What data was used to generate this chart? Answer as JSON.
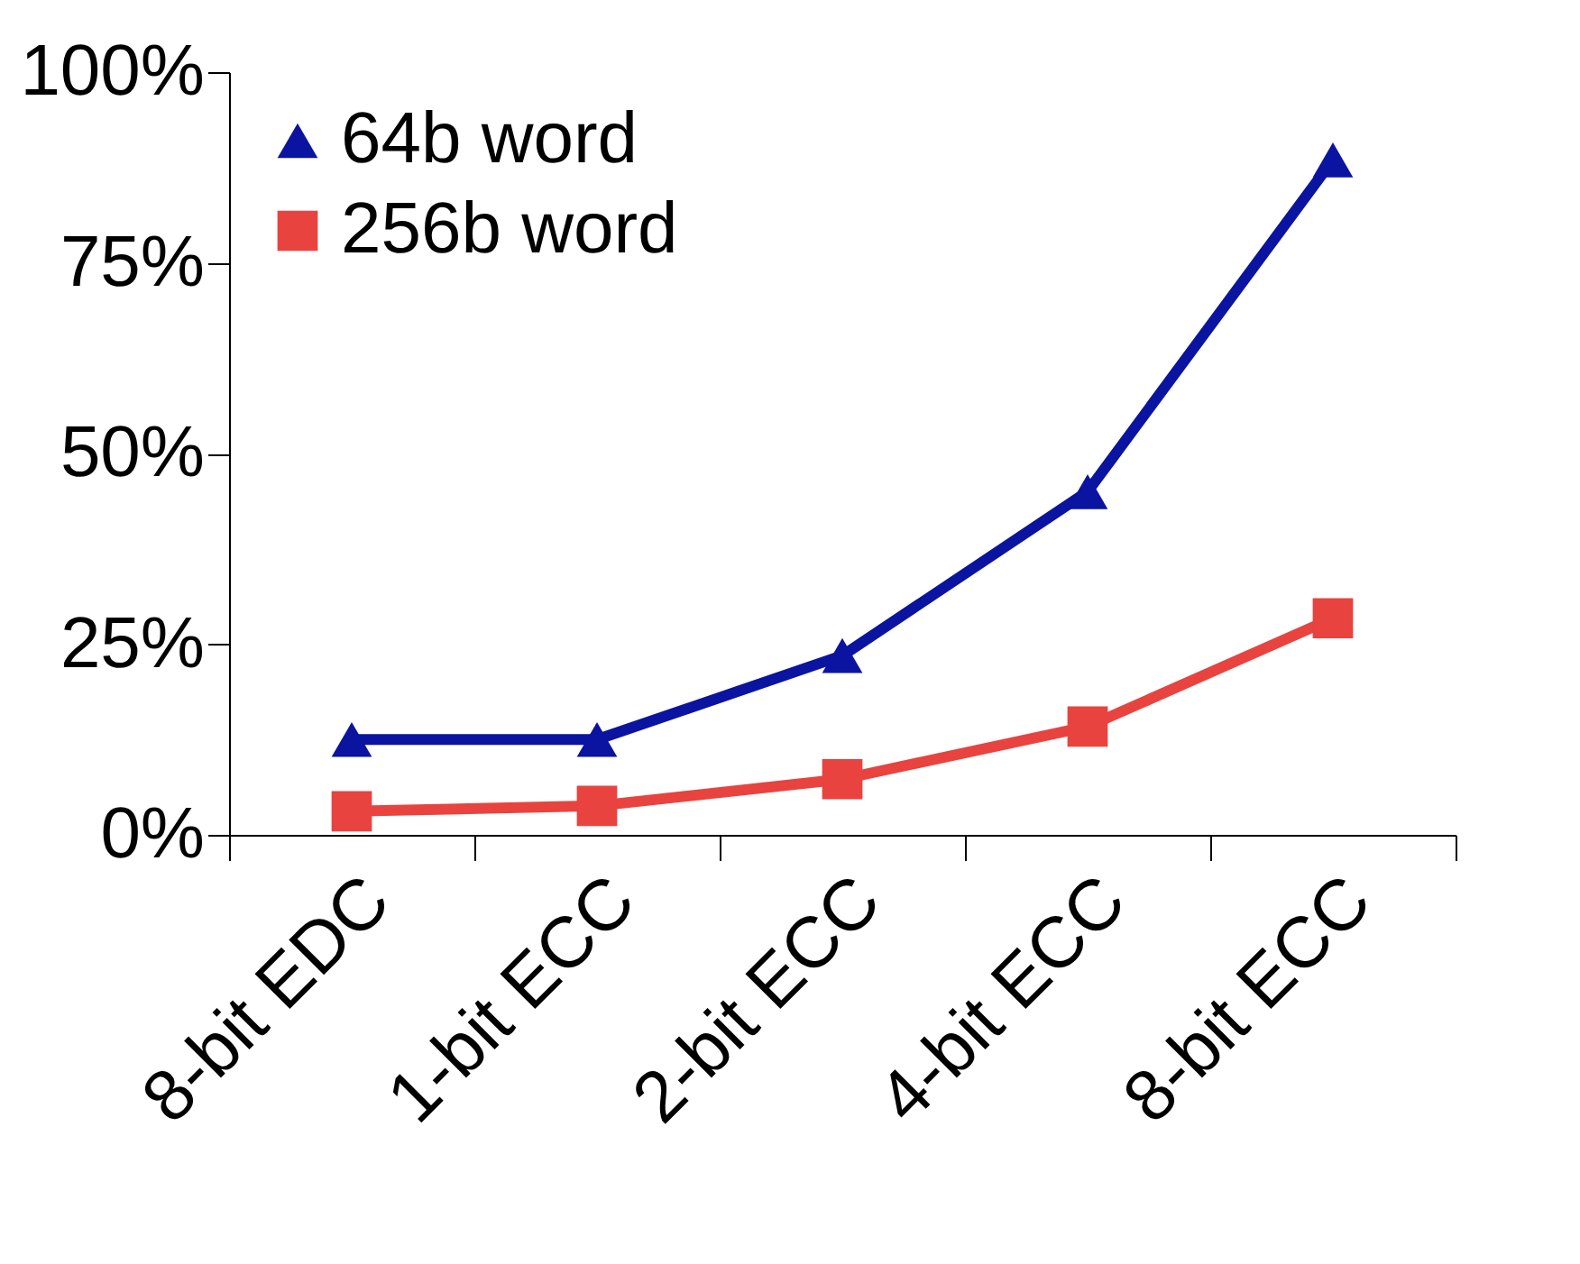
{
  "chart_data": {
    "type": "line",
    "categories": [
      "8-bit EDC",
      "1-bit ECC",
      "2-bit ECC",
      "4-bit ECC",
      "8-bit ECC"
    ],
    "series": [
      {
        "name": "64b word",
        "color": "#0a14a0",
        "marker": "triangle",
        "values": [
          12.5,
          12.5,
          23.5,
          45,
          88.5
        ]
      },
      {
        "name": "256b word",
        "color": "#e8433f",
        "marker": "square",
        "values": [
          3.1,
          3.8,
          7.3,
          14.2,
          28.4
        ]
      }
    ],
    "ylim": [
      0,
      100
    ],
    "yticks": [
      {
        "value": 0,
        "label": "0%"
      },
      {
        "value": 25,
        "label": "25%"
      },
      {
        "value": 50,
        "label": "50%"
      },
      {
        "value": 75,
        "label": "75%"
      },
      {
        "value": 100,
        "label": "100%"
      }
    ],
    "grid": false,
    "legend": "top left"
  }
}
